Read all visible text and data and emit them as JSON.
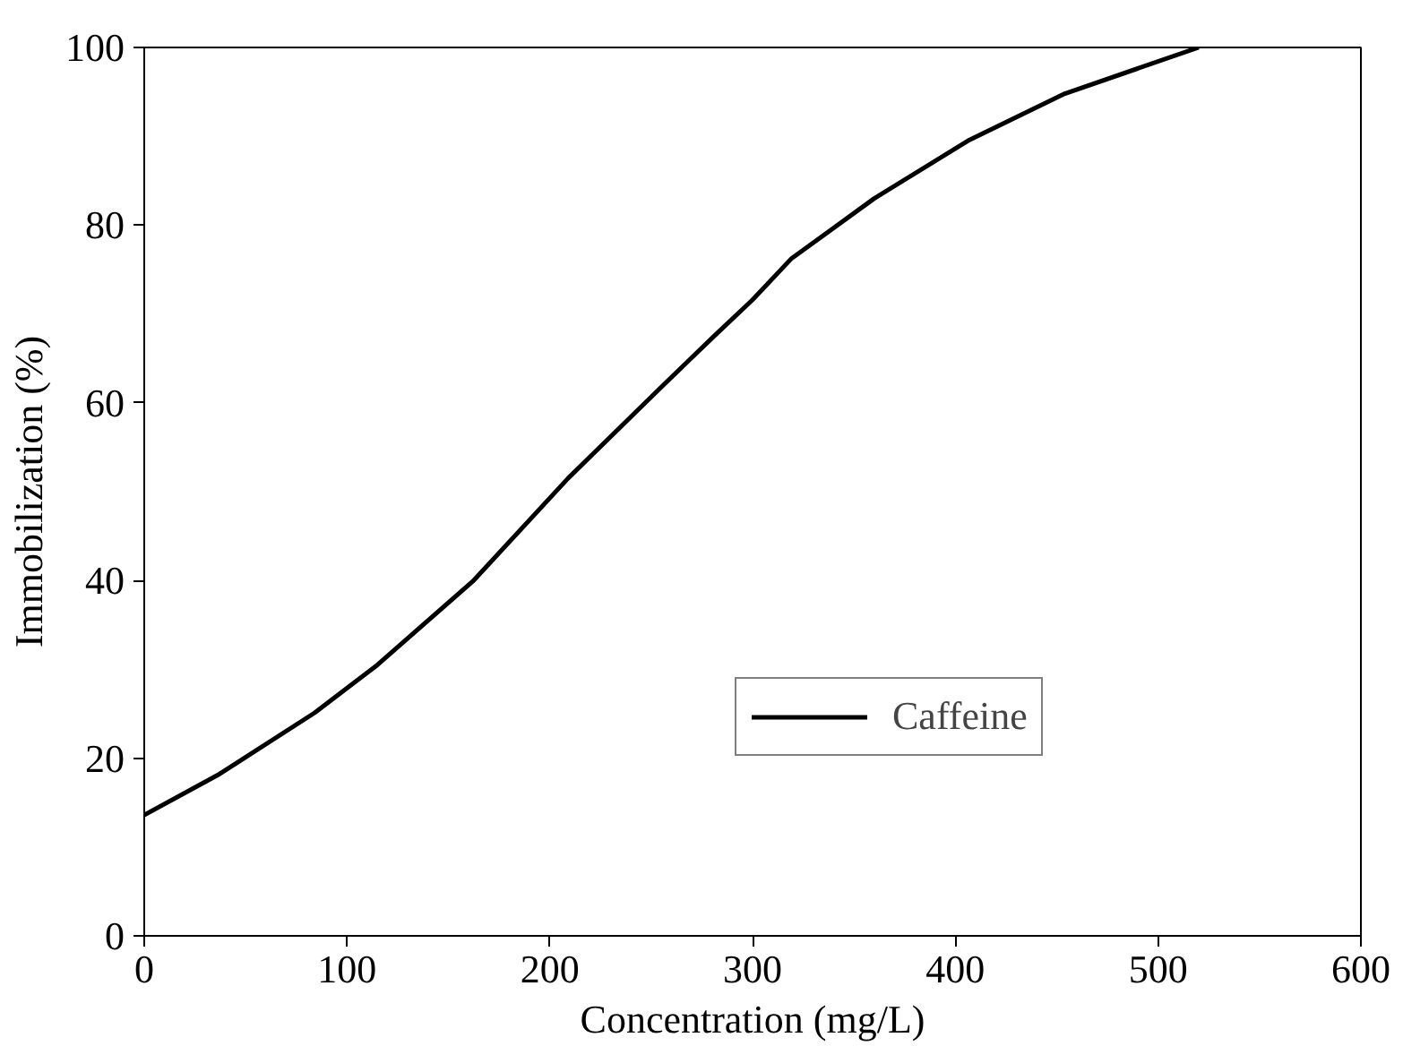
{
  "chart_data": {
    "type": "line",
    "xlabel": "Concentration (mg/L)",
    "ylabel": "Immobilization (%)",
    "x": [
      0,
      37,
      84,
      115,
      162,
      209,
      256,
      281,
      300,
      319,
      360,
      407,
      454,
      520
    ],
    "series": [
      {
        "name": "Caffeine",
        "color": "#000000",
        "values": [
          13.6,
          18.2,
          25.1,
          30.5,
          39.9,
          51.5,
          62,
          67.5,
          71.6,
          76.2,
          83,
          89.6,
          94.8,
          100
        ]
      }
    ],
    "xlim": [
      0,
      600
    ],
    "ylim": [
      0,
      100
    ],
    "xticks": [
      0,
      100,
      200,
      300,
      400,
      500,
      600
    ],
    "yticks": [
      0,
      20,
      40,
      60,
      80,
      100
    ],
    "grid": false,
    "legend": "bottom right",
    "marker": "none",
    "line_style": "solid"
  }
}
